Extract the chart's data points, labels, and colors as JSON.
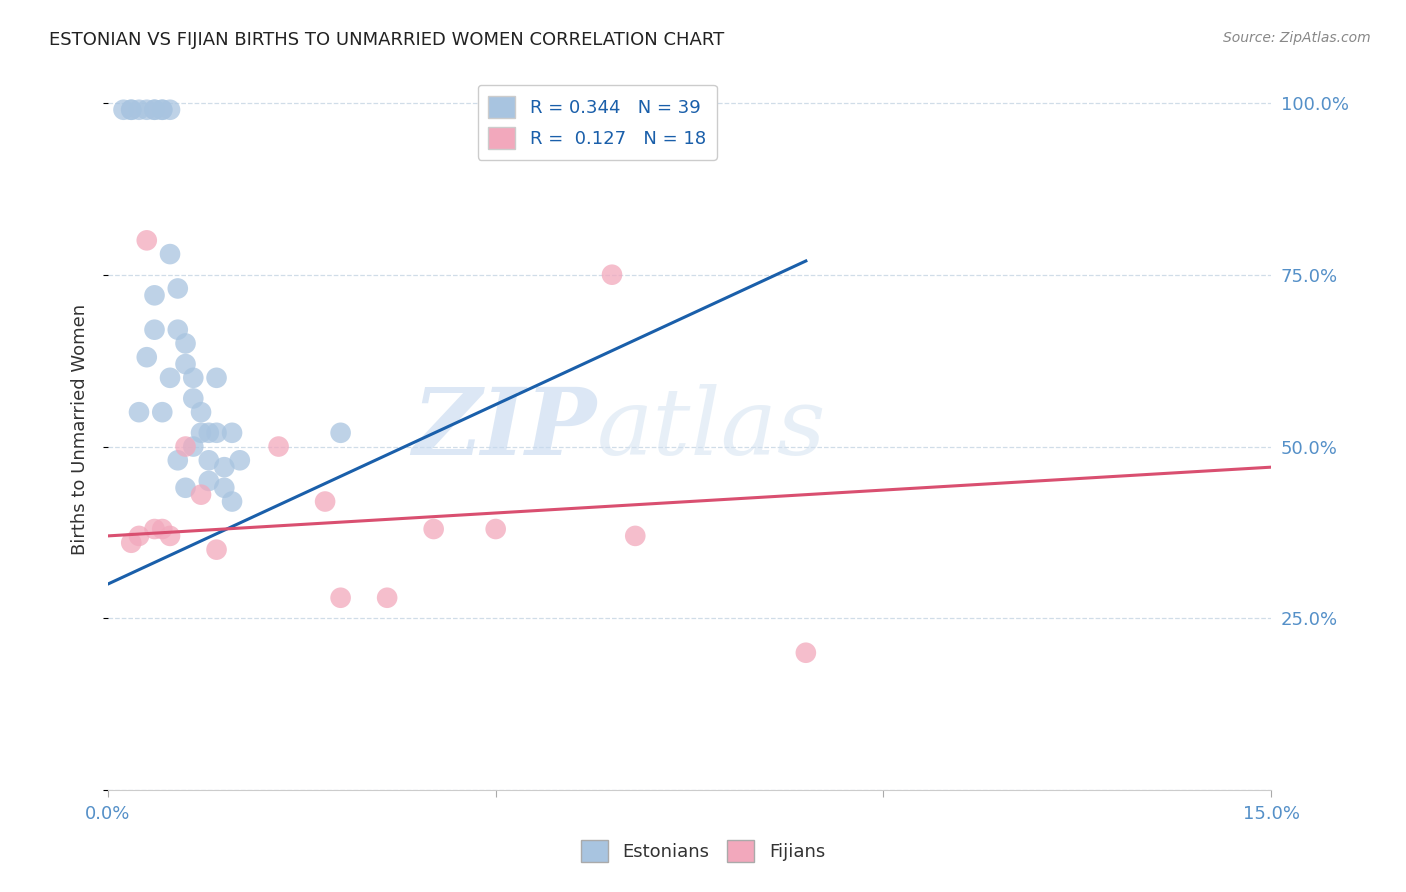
{
  "title": "ESTONIAN VS FIJIAN BIRTHS TO UNMARRIED WOMEN CORRELATION CHART",
  "source": "Source: ZipAtlas.com",
  "ylabel": "Births to Unmarried Women",
  "xlim": [
    0.0,
    0.15
  ],
  "ylim": [
    0.0,
    1.05
  ],
  "estonian_R": 0.344,
  "estonian_N": 39,
  "fijian_R": 0.127,
  "fijian_N": 18,
  "estonian_color": "#a8c4e0",
  "fijian_color": "#f2a8bc",
  "estonian_line_color": "#1a5faa",
  "fijian_line_color": "#d94f70",
  "watermark_zip": "ZIP",
  "watermark_atlas": "atlas",
  "background_color": "#ffffff",
  "estonian_points_x": [
    0.002,
    0.003,
    0.003,
    0.004,
    0.005,
    0.006,
    0.006,
    0.007,
    0.007,
    0.008,
    0.008,
    0.009,
    0.009,
    0.01,
    0.01,
    0.011,
    0.011,
    0.012,
    0.012,
    0.013,
    0.013,
    0.014,
    0.015,
    0.015,
    0.016,
    0.017,
    0.004,
    0.005,
    0.006,
    0.006,
    0.007,
    0.008,
    0.009,
    0.01,
    0.011,
    0.013,
    0.014,
    0.016,
    0.03
  ],
  "estonian_points_y": [
    0.99,
    0.99,
    0.99,
    0.99,
    0.99,
    0.99,
    0.99,
    0.99,
    0.99,
    0.99,
    0.78,
    0.73,
    0.67,
    0.65,
    0.62,
    0.6,
    0.57,
    0.55,
    0.52,
    0.52,
    0.48,
    0.52,
    0.47,
    0.44,
    0.52,
    0.48,
    0.55,
    0.63,
    0.67,
    0.72,
    0.55,
    0.6,
    0.48,
    0.44,
    0.5,
    0.45,
    0.6,
    0.42,
    0.52
  ],
  "fijian_points_x": [
    0.003,
    0.004,
    0.005,
    0.006,
    0.007,
    0.008,
    0.01,
    0.012,
    0.014,
    0.022,
    0.028,
    0.03,
    0.036,
    0.042,
    0.05,
    0.065,
    0.068,
    0.09
  ],
  "fijian_points_y": [
    0.36,
    0.37,
    0.8,
    0.38,
    0.38,
    0.37,
    0.5,
    0.43,
    0.35,
    0.5,
    0.42,
    0.28,
    0.28,
    0.38,
    0.38,
    0.75,
    0.37,
    0.2
  ],
  "blue_line_x0": 0.0,
  "blue_line_y0": 0.3,
  "blue_line_x1": 0.09,
  "blue_line_y1": 0.77,
  "pink_line_x0": 0.0,
  "pink_line_y0": 0.37,
  "pink_line_x1": 0.15,
  "pink_line_y1": 0.47,
  "grid_color": "#d0dde8",
  "tick_color": "#5590c8"
}
